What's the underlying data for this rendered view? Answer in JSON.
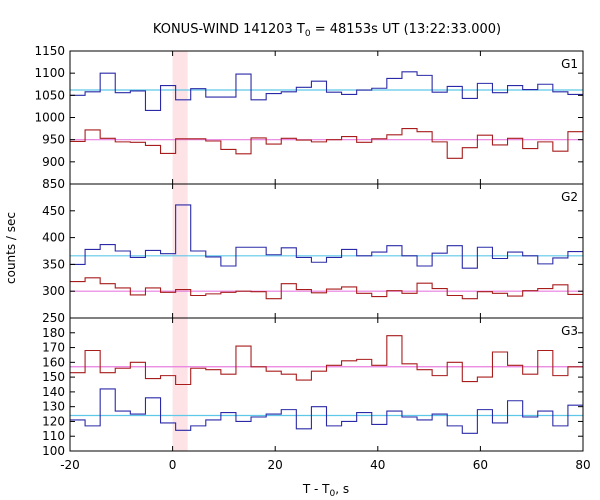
{
  "chart_data": {
    "type": "line",
    "title": "KONUS-WIND 141203 T₀ = 48153s UT (13:22:33.000)",
    "title_main": "KONUS-WIND 141203 T",
    "title_sub": "0",
    "title_rest": " = 48153s UT (13:22:33.000)",
    "xlabel": "T - T₀, s",
    "xlabel_main": "T - T",
    "xlabel_sub": "0",
    "xlabel_rest": ", s",
    "ylabel": "counts / sec",
    "xlim": [
      -20,
      80
    ],
    "x_ticks": [
      -20,
      0,
      20,
      40,
      60,
      80
    ],
    "highlight_band": {
      "x": [
        0,
        2.94
      ],
      "color": "#fde3e6"
    },
    "bin_edges": [
      -20.0,
      -17.06,
      -14.12,
      -11.18,
      -8.24,
      -5.29,
      -2.35,
      0.59,
      3.53,
      6.47,
      9.41,
      12.35,
      15.29,
      18.24,
      21.18,
      24.12,
      27.06,
      30.0,
      32.94,
      35.88,
      38.82,
      41.76,
      44.71,
      47.65,
      50.59,
      53.53,
      56.47,
      59.41,
      62.35,
      65.29,
      68.24,
      71.18,
      74.12,
      77.06,
      80.0
    ],
    "panels": [
      {
        "label": "G1",
        "ylim": [
          850,
          1150
        ],
        "y_ticks": [
          850,
          900,
          950,
          1000,
          1050,
          1100,
          1150
        ],
        "series": [
          {
            "color": "#2a2aa8",
            "background_level": 1062,
            "background_color": "#5ec8e8",
            "values": [
              1050,
              1058,
              1100,
              1056,
              1060,
              1016,
              1072,
              1040,
              1065,
              1046,
              1046,
              1098,
              1040,
              1054,
              1058,
              1068,
              1082,
              1057,
              1052,
              1062,
              1066,
              1088,
              1103,
              1095,
              1057,
              1070,
              1043,
              1077,
              1056,
              1072,
              1063,
              1075,
              1058,
              1052
            ]
          },
          {
            "color": "#a81c1c",
            "background_level": 950,
            "background_color": "#e87ee0",
            "values": [
              946,
              972,
              953,
              945,
              944,
              937,
              919,
              952,
              952,
              947,
              928,
              918,
              954,
              940,
              953,
              949,
              945,
              950,
              957,
              944,
              952,
              961,
              975,
              968,
              945,
              908,
              932,
              960,
              938,
              953,
              930,
              945,
              924,
              968
            ]
          }
        ]
      },
      {
        "label": "G2",
        "ylim": [
          250,
          500
        ],
        "y_ticks": [
          250,
          300,
          350,
          400,
          450
        ],
        "series": [
          {
            "color": "#2a2aa8",
            "background_level": 366,
            "background_color": "#5ec8e8",
            "values": [
              350,
              378,
              387,
              375,
              363,
              376,
              370,
              461,
              375,
              364,
              347,
              382,
              382,
              368,
              381,
              363,
              354,
              363,
              378,
              366,
              373,
              385,
              366,
              347,
              371,
              385,
              343,
              382,
              361,
              373,
              366,
              351,
              362,
              374
            ]
          },
          {
            "color": "#a81c1c",
            "background_level": 300,
            "background_color": "#e87ee0",
            "values": [
              318,
              325,
              314,
              306,
              293,
              306,
              298,
              303,
              292,
              295,
              298,
              300,
              299,
              286,
              314,
              303,
              297,
              304,
              308,
              296,
              290,
              301,
              296,
              315,
              305,
              292,
              286,
              299,
              296,
              291,
              301,
              305,
              312,
              294
            ]
          }
        ]
      },
      {
        "label": "G3",
        "ylim": [
          100,
          190
        ],
        "y_ticks": [
          100,
          110,
          120,
          130,
          140,
          150,
          160,
          170,
          180
        ],
        "series": [
          {
            "color": "#2a2aa8",
            "background_level": 124,
            "background_color": "#5ec8e8",
            "values": [
              121,
              117,
              142,
              127,
              125,
              136,
              119,
              114,
              117,
              121,
              126,
              120,
              123,
              125,
              128,
              115,
              130,
              117,
              120,
              126,
              118,
              127,
              123,
              121,
              125,
              117,
              112,
              128,
              119,
              134,
              123,
              127,
              117,
              131
            ]
          },
          {
            "color": "#a81c1c",
            "background_level": 157,
            "background_color": "#e87ee0",
            "values": [
              153,
              168,
              153,
              156,
              160,
              149,
              151,
              145,
              156,
              155,
              152,
              171,
              157,
              154,
              152,
              148,
              154,
              158,
              161,
              162,
              158,
              178,
              159,
              155,
              151,
              160,
              147,
              150,
              167,
              158,
              152,
              168,
              151,
              157
            ]
          }
        ]
      }
    ]
  }
}
